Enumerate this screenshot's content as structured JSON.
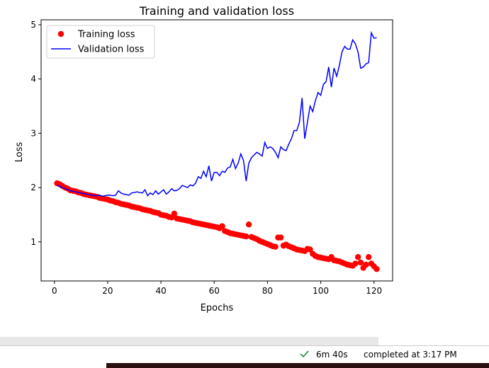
{
  "chart_data": {
    "type": "line",
    "title": "Training and validation loss",
    "x_label": "Epochs",
    "y_label": "Loss",
    "x": [
      1,
      2,
      3,
      4,
      5,
      6,
      7,
      8,
      9,
      10,
      11,
      12,
      13,
      14,
      15,
      16,
      17,
      18,
      19,
      20,
      21,
      22,
      23,
      24,
      25,
      26,
      27,
      28,
      29,
      30,
      31,
      32,
      33,
      34,
      35,
      36,
      37,
      38,
      39,
      40,
      41,
      42,
      43,
      44,
      45,
      46,
      47,
      48,
      49,
      50,
      51,
      52,
      53,
      54,
      55,
      56,
      57,
      58,
      59,
      60,
      61,
      62,
      63,
      64,
      65,
      66,
      67,
      68,
      69,
      70,
      71,
      72,
      73,
      74,
      75,
      76,
      77,
      78,
      79,
      80,
      81,
      82,
      83,
      84,
      85,
      86,
      87,
      88,
      89,
      90,
      91,
      92,
      93,
      94,
      95,
      96,
      97,
      98,
      99,
      100,
      101,
      102,
      103,
      104,
      105,
      106,
      107,
      108,
      109,
      110,
      111,
      112,
      113,
      114,
      115,
      116,
      117,
      118,
      119,
      120,
      121
    ],
    "series": [
      {
        "name": "Training loss",
        "color": "#ff0000",
        "mode": "markers",
        "values": [
          2.08,
          2.06,
          2.03,
          2.0,
          1.98,
          1.95,
          1.94,
          1.93,
          1.91,
          1.9,
          1.88,
          1.87,
          1.86,
          1.85,
          1.84,
          1.83,
          1.81,
          1.8,
          1.79,
          1.78,
          1.76,
          1.75,
          1.73,
          1.72,
          1.7,
          1.69,
          1.68,
          1.67,
          1.65,
          1.64,
          1.63,
          1.62,
          1.6,
          1.59,
          1.58,
          1.57,
          1.55,
          1.54,
          1.53,
          1.5,
          1.49,
          1.48,
          1.46,
          1.45,
          1.52,
          1.43,
          1.42,
          1.41,
          1.4,
          1.39,
          1.38,
          1.36,
          1.35,
          1.34,
          1.33,
          1.32,
          1.31,
          1.3,
          1.29,
          1.28,
          1.27,
          1.25,
          1.29,
          1.2,
          1.18,
          1.16,
          1.15,
          1.14,
          1.13,
          1.12,
          1.11,
          1.1,
          1.32,
          1.09,
          1.07,
          1.05,
          1.02,
          1.0,
          0.98,
          0.96,
          0.94,
          0.92,
          0.91,
          1.08,
          1.08,
          0.93,
          0.95,
          0.92,
          0.9,
          0.88,
          0.86,
          0.85,
          0.84,
          0.83,
          0.87,
          0.86,
          0.78,
          0.74,
          0.72,
          0.71,
          0.7,
          0.69,
          0.68,
          0.72,
          0.66,
          0.65,
          0.64,
          0.62,
          0.6,
          0.58,
          0.57,
          0.56,
          0.6,
          0.72,
          0.62,
          0.52,
          0.58,
          0.72,
          0.6,
          0.55,
          0.5
        ]
      },
      {
        "name": "Validation loss",
        "color": "#0000ff",
        "mode": "line",
        "values": [
          2.05,
          2.02,
          2.0,
          1.98,
          1.96,
          1.94,
          1.93,
          1.92,
          1.91,
          1.9,
          1.89,
          1.88,
          1.87,
          1.86,
          1.85,
          1.85,
          1.86,
          1.84,
          1.85,
          1.86,
          1.86,
          1.85,
          1.86,
          1.94,
          1.9,
          1.88,
          1.87,
          1.86,
          1.9,
          1.91,
          1.92,
          1.91,
          1.9,
          1.96,
          1.85,
          1.9,
          1.87,
          1.94,
          1.88,
          1.92,
          1.96,
          1.88,
          1.92,
          1.98,
          1.94,
          1.95,
          1.98,
          2.04,
          2.02,
          2.0,
          2.05,
          2.03,
          2.08,
          2.2,
          2.17,
          2.3,
          2.2,
          2.4,
          2.12,
          2.28,
          2.28,
          2.22,
          2.3,
          2.28,
          2.36,
          2.38,
          2.52,
          2.35,
          2.45,
          2.62,
          2.5,
          2.12,
          2.45,
          2.55,
          2.6,
          2.65,
          2.62,
          2.58,
          2.83,
          2.72,
          2.75,
          2.72,
          2.65,
          2.55,
          2.75,
          2.7,
          2.68,
          2.8,
          2.9,
          3.05,
          3.05,
          3.2,
          3.65,
          2.9,
          3.2,
          3.5,
          3.4,
          3.6,
          3.75,
          3.7,
          3.9,
          3.95,
          4.22,
          3.85,
          4.2,
          4.05,
          4.25,
          4.5,
          4.6,
          4.55,
          4.55,
          4.72,
          4.65,
          4.5,
          4.2,
          4.22,
          4.28,
          4.3,
          4.85,
          4.75,
          4.76
        ]
      }
    ],
    "xlim": [
      -5,
      127
    ],
    "ylim": [
      0.28,
      5.09
    ],
    "xticks": [
      0,
      20,
      40,
      60,
      80,
      100,
      120
    ],
    "yticks": [
      1,
      2,
      3,
      4,
      5
    ],
    "grid": false,
    "legend": "upper left"
  },
  "status": {
    "duration": "6m 40s",
    "completed": "completed at 3:17 PM"
  }
}
